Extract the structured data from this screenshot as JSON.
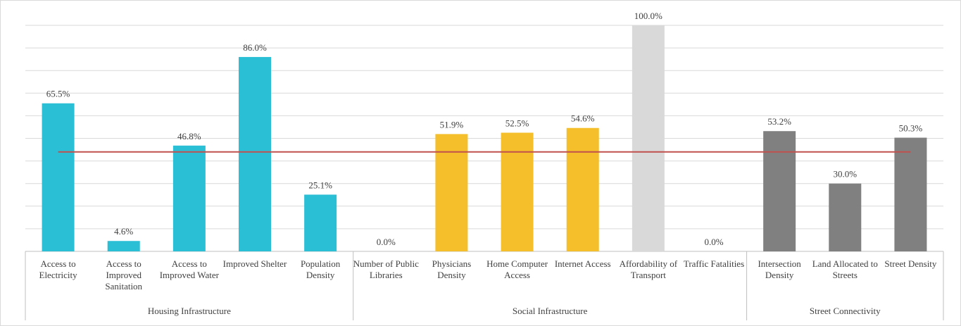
{
  "chart_data": {
    "type": "bar",
    "groups": [
      {
        "name": "Housing Infrastructure",
        "categories": [
          "Access to Electricity",
          "Access to Improved Sanitation",
          "Access to Improved Water",
          "Improved Shelter",
          "Population Density"
        ],
        "values": [
          65.5,
          4.6,
          46.8,
          86.0,
          25.1
        ],
        "value_labels": [
          "65.5%",
          "4.6%",
          "46.8%",
          "86.0%",
          "25.1%"
        ],
        "colors": [
          "#2bbfd6",
          "#2bbfd6",
          "#2bbfd6",
          "#2bbfd6",
          "#2bbfd6"
        ]
      },
      {
        "name": "Social Infrastructure",
        "categories": [
          "Number of Public Libraries",
          "Physicians Density",
          "Home Computer Access",
          "Internet Access",
          "Affordability of Transport",
          "Traffic Fatalities"
        ],
        "values": [
          0.0,
          51.9,
          52.5,
          54.6,
          100.0,
          0.0
        ],
        "value_labels": [
          "0.0%",
          "51.9%",
          "52.5%",
          "54.6%",
          "100.0%",
          "0.0%"
        ],
        "colors": [
          "#f4bf2a",
          "#f4bf2a",
          "#f4bf2a",
          "#f4bf2a",
          "#d9d9d9",
          "#f4bf2a"
        ]
      },
      {
        "name": "Street Connectivity",
        "categories": [
          "Intersection Density",
          "Land Allocated to Streets",
          "Street Density"
        ],
        "values": [
          53.2,
          30.0,
          50.3
        ],
        "value_labels": [
          "53.2%",
          "30.0%",
          "50.3%"
        ],
        "colors": [
          "#808080",
          "#808080",
          "#808080"
        ]
      }
    ],
    "reference_line": 44,
    "reference_color": "#c0504d",
    "ylim": [
      0,
      100
    ],
    "yticks": [
      0,
      10,
      20,
      30,
      40,
      50,
      60,
      70,
      80,
      90,
      100
    ],
    "grid": true
  }
}
